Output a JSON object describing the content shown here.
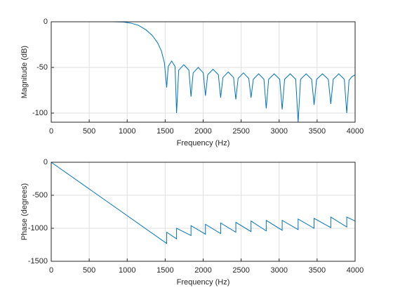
{
  "chart_data": [
    {
      "type": "line",
      "xlabel": "Frequency (Hz)",
      "ylabel": "Magnitude (dB)",
      "xlim": [
        0,
        4000
      ],
      "xticks": [
        0,
        500,
        1000,
        1500,
        2000,
        2500,
        3000,
        3500,
        4000
      ],
      "ylim": [
        -110,
        0
      ],
      "yticks": [
        -100,
        -50,
        0
      ],
      "grid": true,
      "series": [
        {
          "color": "#0072bd",
          "x": [
            0,
            200,
            500,
            800,
            950,
            1050,
            1150,
            1250,
            1330,
            1400,
            1450,
            1490,
            1520,
            1540,
            1585,
            1630,
            1650,
            1678,
            1745,
            1812,
            1840,
            1868,
            1935,
            2002,
            2030,
            2060,
            2130,
            2200,
            2230,
            2260,
            2330,
            2400,
            2430,
            2460,
            2530,
            2600,
            2630,
            2660,
            2730,
            2800,
            2830,
            2862,
            2935,
            3008,
            3040,
            3072,
            3145,
            3218,
            3250,
            3282,
            3355,
            3428,
            3460,
            3493,
            3570,
            3647,
            3680,
            3712,
            3785,
            3858,
            3890,
            3920,
            3960,
            4000
          ],
          "values": [
            0,
            0,
            0,
            0,
            -0.3,
            -1.5,
            -4,
            -9,
            -15,
            -23,
            -32,
            -45,
            -72,
            -49,
            -43,
            -49,
            -100,
            -53,
            -47,
            -53,
            -82,
            -56,
            -50,
            -56,
            -81,
            -58,
            -52,
            -58,
            -83,
            -61,
            -55,
            -61,
            -85,
            -62,
            -56,
            -62,
            -83,
            -63,
            -57,
            -63,
            -95,
            -63,
            -57,
            -63,
            -96,
            -63,
            -57,
            -63,
            -110,
            -63,
            -57,
            -63,
            -91,
            -63,
            -57,
            -63,
            -90,
            -63,
            -57,
            -63,
            -100,
            -64,
            -60,
            -58
          ]
        }
      ]
    },
    {
      "type": "line",
      "xlabel": "Frequency (Hz)",
      "ylabel": "Phase (degrees)",
      "xlim": [
        0,
        4000
      ],
      "xticks": [
        0,
        500,
        1000,
        1500,
        2000,
        2500,
        3000,
        3500,
        4000
      ],
      "ylim": [
        -1500,
        0
      ],
      "yticks": [
        -1500,
        -1000,
        -500,
        0
      ],
      "grid": true,
      "series": [
        {
          "color": "#0072bd",
          "x": [
            0,
            1520,
            1520,
            1650,
            1650,
            1840,
            1840,
            2030,
            2030,
            2230,
            2230,
            2430,
            2430,
            2630,
            2630,
            2830,
            2830,
            3040,
            3040,
            3250,
            3250,
            3460,
            3460,
            3680,
            3680,
            3890,
            3890,
            4000
          ],
          "values": [
            0,
            -1230,
            -1060,
            -1160,
            -1000,
            -1110,
            -960,
            -1090,
            -940,
            -1080,
            -920,
            -1060,
            -910,
            -1050,
            -890,
            -1040,
            -880,
            -1030,
            -880,
            -1020,
            -860,
            -1000,
            -850,
            -990,
            -830,
            -980,
            -830,
            -890
          ]
        }
      ]
    }
  ]
}
